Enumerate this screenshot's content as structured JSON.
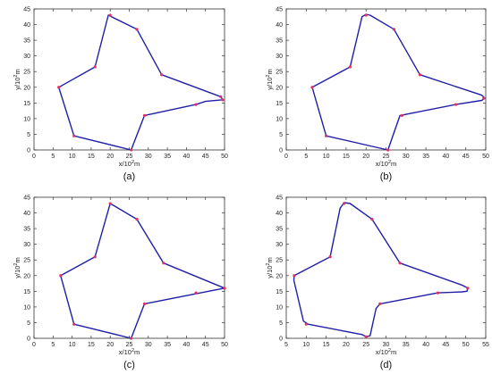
{
  "chart_data": [
    {
      "type": "line",
      "panel": "(a)",
      "xlabel": "x/10",
      "xlabel_exp": "2",
      "xlabel_unit": "m",
      "ylabel": "y/10",
      "ylabel_exp": "2",
      "ylabel_unit": "m",
      "xlim": [
        0,
        50
      ],
      "ylim": [
        0,
        45
      ],
      "xticks": [
        0,
        5,
        10,
        15,
        20,
        25,
        30,
        35,
        40,
        45,
        50
      ],
      "yticks": [
        0,
        5,
        10,
        15,
        20,
        25,
        30,
        35,
        40,
        45
      ],
      "grid": false,
      "path_color": "#1f1fa8",
      "marker_color": "#e0306a",
      "path": [
        [
          6.5,
          20
        ],
        [
          16,
          26.5
        ],
        [
          19.5,
          43
        ],
        [
          27,
          38.5
        ],
        [
          33.5,
          24
        ],
        [
          49,
          17
        ],
        [
          49.5,
          16
        ],
        [
          45,
          15.5
        ],
        [
          42.5,
          14.5
        ],
        [
          29,
          11
        ],
        [
          25.5,
          0
        ],
        [
          10.5,
          4.5
        ],
        [
          6.5,
          20
        ]
      ],
      "markers": [
        [
          6.5,
          20
        ],
        [
          16,
          26.5
        ],
        [
          20,
          43
        ],
        [
          27,
          38.5
        ],
        [
          33.5,
          24
        ],
        [
          49,
          17
        ],
        [
          49.5,
          16
        ],
        [
          42.5,
          14.5
        ],
        [
          29,
          11
        ],
        [
          25.5,
          0
        ],
        [
          10.5,
          4.5
        ]
      ]
    },
    {
      "type": "line",
      "panel": "(b)",
      "xlabel": "x/10",
      "xlabel_exp": "2",
      "xlabel_unit": "m",
      "ylabel": "y/10",
      "ylabel_exp": "2",
      "ylabel_unit": "m",
      "xlim": [
        0,
        50
      ],
      "ylim": [
        0,
        45
      ],
      "xticks": [
        0,
        5,
        10,
        15,
        20,
        25,
        30,
        35,
        40,
        45,
        50
      ],
      "yticks": [
        0,
        5,
        10,
        15,
        20,
        25,
        30,
        35,
        40,
        45
      ],
      "grid": false,
      "path_color": "#1f1fa8",
      "marker_color": "#e0306a",
      "path": [
        [
          6.5,
          20
        ],
        [
          16,
          26.5
        ],
        [
          19,
          42.5
        ],
        [
          20,
          43.3
        ],
        [
          21,
          43
        ],
        [
          27,
          38.5
        ],
        [
          33.5,
          24
        ],
        [
          49,
          17.5
        ],
        [
          49.8,
          16.5
        ],
        [
          49,
          15.8
        ],
        [
          42.5,
          14.5
        ],
        [
          28.5,
          11
        ],
        [
          25.5,
          0
        ],
        [
          10,
          4.5
        ],
        [
          6.5,
          20
        ]
      ],
      "markers": [
        [
          6.5,
          20
        ],
        [
          16,
          26.5
        ],
        [
          20,
          43
        ],
        [
          27,
          38.5
        ],
        [
          33.5,
          24
        ],
        [
          49.5,
          16.5
        ],
        [
          42.5,
          14.5
        ],
        [
          29,
          11
        ],
        [
          25.5,
          0
        ],
        [
          10,
          4.5
        ]
      ]
    },
    {
      "type": "line",
      "panel": "(c)",
      "xlabel": "x/10",
      "xlabel_exp": "2",
      "xlabel_unit": "m",
      "ylabel": "y/10",
      "ylabel_exp": "2",
      "ylabel_unit": "m",
      "xlim": [
        0,
        50
      ],
      "ylim": [
        0,
        45
      ],
      "xticks": [
        0,
        5,
        10,
        15,
        20,
        25,
        30,
        35,
        40,
        45,
        50
      ],
      "yticks": [
        0,
        5,
        10,
        15,
        20,
        25,
        30,
        35,
        40,
        45
      ],
      "grid": false,
      "path_color": "#1f1fa8",
      "marker_color": "#e0306a",
      "path": [
        [
          7,
          20
        ],
        [
          16,
          26
        ],
        [
          20,
          43
        ],
        [
          27,
          38
        ],
        [
          34,
          24
        ],
        [
          50,
          16
        ],
        [
          29,
          11
        ],
        [
          25.5,
          0
        ],
        [
          10.5,
          4.5
        ],
        [
          7,
          20
        ]
      ],
      "markers": [
        [
          7,
          20
        ],
        [
          16,
          26
        ],
        [
          20,
          43
        ],
        [
          27,
          38
        ],
        [
          34,
          24
        ],
        [
          42.5,
          14.5
        ],
        [
          50,
          16
        ],
        [
          29,
          11
        ],
        [
          25.5,
          0
        ],
        [
          10.5,
          4.5
        ]
      ]
    },
    {
      "type": "line",
      "panel": "(d)",
      "xlabel": "x/10",
      "xlabel_exp": "2",
      "xlabel_unit": "m",
      "ylabel": "y/10",
      "ylabel_exp": "2",
      "ylabel_unit": "m",
      "xlim": [
        5,
        55
      ],
      "ylim": [
        0,
        45
      ],
      "xticks": [
        5,
        10,
        15,
        20,
        25,
        30,
        35,
        40,
        45,
        50,
        55
      ],
      "yticks": [
        0,
        5,
        10,
        15,
        20,
        25,
        30,
        35,
        40,
        45
      ],
      "grid": false,
      "path_color": "#1f1fa8",
      "marker_color": "#e0306a",
      "path": [
        [
          7,
          20
        ],
        [
          16,
          26
        ],
        [
          18.5,
          41.5
        ],
        [
          19.5,
          43.3
        ],
        [
          21,
          43
        ],
        [
          26.5,
          38
        ],
        [
          33.5,
          24
        ],
        [
          49,
          17
        ],
        [
          50.5,
          16
        ],
        [
          50.3,
          15
        ],
        [
          49,
          14.8
        ],
        [
          43,
          14.5
        ],
        [
          28.5,
          11
        ],
        [
          27.5,
          9.5
        ],
        [
          26,
          0.8
        ],
        [
          25,
          0.5
        ],
        [
          24,
          1.2
        ],
        [
          10.5,
          4.5
        ],
        [
          9.3,
          5.5
        ],
        [
          6.9,
          18.5
        ],
        [
          7,
          20
        ]
      ],
      "markers": [
        [
          7,
          20
        ],
        [
          16,
          26
        ],
        [
          19.5,
          43
        ],
        [
          26.5,
          38
        ],
        [
          33.5,
          24
        ],
        [
          43,
          14.5
        ],
        [
          50.5,
          16
        ],
        [
          28.5,
          11
        ],
        [
          25,
          0.5
        ],
        [
          10,
          4.5
        ]
      ]
    }
  ]
}
